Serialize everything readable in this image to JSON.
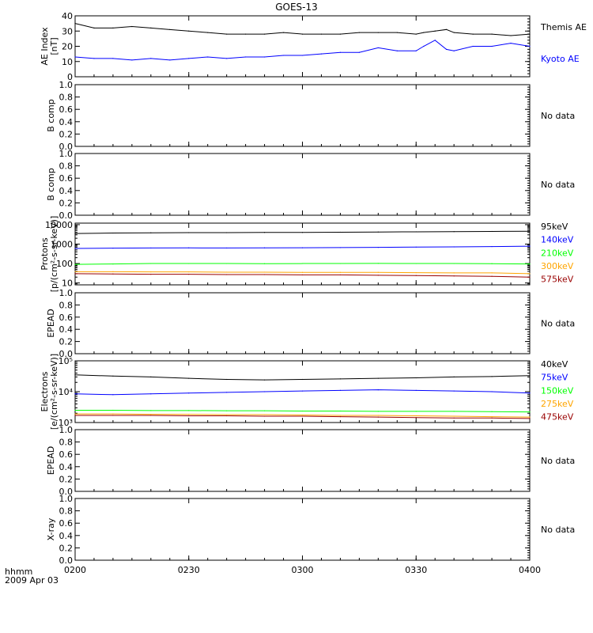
{
  "title": "GOES-13",
  "footer": {
    "hhmm": "hhmm",
    "date": "2009 Apr 03"
  },
  "x_ticks": [
    "0200",
    "0230",
    "0300",
    "0330",
    "0400"
  ],
  "colors": {
    "black": "#000000",
    "blue": "#0000ff",
    "green": "#00ff00",
    "orange": "#ffa500",
    "darkred": "#990000"
  },
  "chart_data": [
    {
      "type": "line",
      "ylabel": [
        "AE Index",
        "[nT]"
      ],
      "ylim": [
        0,
        40
      ],
      "ticks": [
        0,
        10,
        20,
        30,
        40
      ],
      "tick_labels": [
        "0",
        "10",
        "20",
        "30",
        "40"
      ],
      "x": [
        "0200",
        "0205",
        "0210",
        "0215",
        "0220",
        "0225",
        "0230",
        "0235",
        "0240",
        "0245",
        "0250",
        "0255",
        "0300",
        "0305",
        "0310",
        "0315",
        "0320",
        "0325",
        "0330",
        "0332",
        "0335",
        "0338",
        "0340",
        "0345",
        "0350",
        "0355",
        "0400"
      ],
      "series": [
        {
          "name": "Kyoto AE",
          "color": "#0000ff",
          "label_color": "#0000ff",
          "values": [
            13,
            12,
            12,
            11,
            12,
            11,
            12,
            13,
            12,
            13,
            13,
            14,
            14,
            15,
            16,
            16,
            19,
            17,
            17,
            20,
            24,
            18,
            17,
            20,
            20,
            22,
            20
          ]
        },
        {
          "name": "Themis AE",
          "color": "#000000",
          "label_color": "#000000",
          "values": [
            35,
            32,
            32,
            33,
            32,
            31,
            30,
            29,
            28,
            28,
            28,
            29,
            28,
            28,
            28,
            29,
            29,
            29,
            28,
            29,
            30,
            31,
            29,
            28,
            28,
            27,
            28
          ]
        }
      ]
    },
    {
      "type": "line",
      "ylabel": [
        "B comp"
      ],
      "ylim": [
        0,
        1
      ],
      "ticks": [
        0,
        0.2,
        0.4,
        0.6,
        0.8,
        1.0
      ],
      "tick_labels": [
        "0.0",
        "0.2",
        "0.4",
        "0.6",
        "0.8",
        "1.0"
      ],
      "note": "No data"
    },
    {
      "type": "line",
      "ylabel": [
        "B comp"
      ],
      "ylim": [
        0,
        1
      ],
      "ticks": [
        0,
        0.2,
        0.4,
        0.6,
        0.8,
        1.0
      ],
      "tick_labels": [
        "0.0",
        "0.2",
        "0.4",
        "0.6",
        "0.8",
        "1.0"
      ],
      "note": "No data"
    },
    {
      "type": "line",
      "log": true,
      "ylabel": [
        "Protons",
        "[p/(cm²-s-sr-keV)]"
      ],
      "ylim": [
        8,
        12000
      ],
      "ticks": [
        10,
        100,
        1000,
        10000
      ],
      "tick_labels": [
        "10",
        "100",
        "1000",
        "10000"
      ],
      "x": [
        "0200",
        "0210",
        "0220",
        "0230",
        "0240",
        "0250",
        "0300",
        "0310",
        "0320",
        "0330",
        "0340",
        "0350",
        "0400"
      ],
      "series": [
        {
          "name": "575keV",
          "color": "#990000",
          "label_color": "#990000",
          "values": [
            30,
            29,
            28,
            28,
            27,
            27,
            26,
            26,
            25,
            24,
            23,
            22,
            20
          ]
        },
        {
          "name": "300keV",
          "color": "#ffa500",
          "label_color": "#ffa500",
          "values": [
            38,
            38,
            37,
            37,
            36,
            36,
            35,
            35,
            35,
            34,
            33,
            33,
            30
          ]
        },
        {
          "name": "210keV",
          "color": "#00ff00",
          "label_color": "#00ff00",
          "values": [
            90,
            95,
            100,
            100,
            100,
            98,
            100,
            100,
            102,
            100,
            100,
            98,
            95
          ]
        },
        {
          "name": "140keV",
          "color": "#0000ff",
          "label_color": "#0000ff",
          "values": [
            600,
            620,
            630,
            640,
            630,
            640,
            650,
            660,
            680,
            700,
            720,
            750,
            780
          ]
        },
        {
          "name": "95keV",
          "color": "#000000",
          "label_color": "#000000",
          "values": [
            3500,
            3700,
            3800,
            3900,
            3900,
            4000,
            4000,
            4100,
            4200,
            4300,
            4400,
            4500,
            4600
          ]
        }
      ]
    },
    {
      "type": "line",
      "ylabel": [
        "EPEAD"
      ],
      "ylim": [
        0,
        1
      ],
      "ticks": [
        0,
        0.2,
        0.4,
        0.6,
        0.8,
        1.0
      ],
      "tick_labels": [
        "0.0",
        "0.2",
        "0.4",
        "0.6",
        "0.8",
        "1.0"
      ],
      "note": "No data"
    },
    {
      "type": "line",
      "log": true,
      "ylabel": [
        "Electrons",
        "[e/(cm²-s-sr-keV)]"
      ],
      "ylim": [
        1000,
        100000
      ],
      "ticks": [
        1000,
        10000,
        100000
      ],
      "tick_labels": [
        "10³",
        "10⁴",
        "10⁵"
      ],
      "x": [
        "0200",
        "0210",
        "0220",
        "0230",
        "0240",
        "0250",
        "0300",
        "0310",
        "0320",
        "0330",
        "0340",
        "0350",
        "0400"
      ],
      "series": [
        {
          "name": "475keV",
          "color": "#990000",
          "label_color": "#990000",
          "values": [
            1700,
            1700,
            1700,
            1650,
            1650,
            1600,
            1600,
            1550,
            1500,
            1450,
            1400,
            1400,
            1350
          ]
        },
        {
          "name": "275keV",
          "color": "#ffa500",
          "label_color": "#ffa500",
          "values": [
            1900,
            1900,
            1850,
            1850,
            1800,
            1800,
            1750,
            1700,
            1700,
            1650,
            1600,
            1550,
            1500
          ]
        },
        {
          "name": "150keV",
          "color": "#00ff00",
          "label_color": "#00ff00",
          "values": [
            2500,
            2500,
            2450,
            2450,
            2400,
            2400,
            2350,
            2350,
            2300,
            2300,
            2300,
            2250,
            2200
          ]
        },
        {
          "name": "75keV",
          "color": "#0000ff",
          "label_color": "#0000ff",
          "values": [
            8500,
            8000,
            8500,
            9000,
            9500,
            10000,
            10500,
            11000,
            11500,
            11000,
            10500,
            10000,
            9000
          ]
        },
        {
          "name": "40keV",
          "color": "#000000",
          "label_color": "#000000",
          "values": [
            35000,
            32000,
            30000,
            27000,
            25000,
            24000,
            25000,
            26000,
            27000,
            28000,
            30000,
            31000,
            33000
          ]
        }
      ]
    },
    {
      "type": "line",
      "ylabel": [
        "EPEAD"
      ],
      "ylim": [
        0,
        1
      ],
      "ticks": [
        0,
        0.2,
        0.4,
        0.6,
        0.8,
        1.0
      ],
      "tick_labels": [
        "0.0",
        "0.2",
        "0.4",
        "0.6",
        "0.8",
        "1.0"
      ],
      "note": "No data"
    },
    {
      "type": "line",
      "ylabel": [
        "X-ray"
      ],
      "ylim": [
        0,
        1
      ],
      "ticks": [
        0,
        0.2,
        0.4,
        0.6,
        0.8,
        1.0
      ],
      "tick_labels": [
        "0.0",
        "0.2",
        "0.4",
        "0.6",
        "0.8",
        "1.0"
      ],
      "note": "No data"
    }
  ]
}
